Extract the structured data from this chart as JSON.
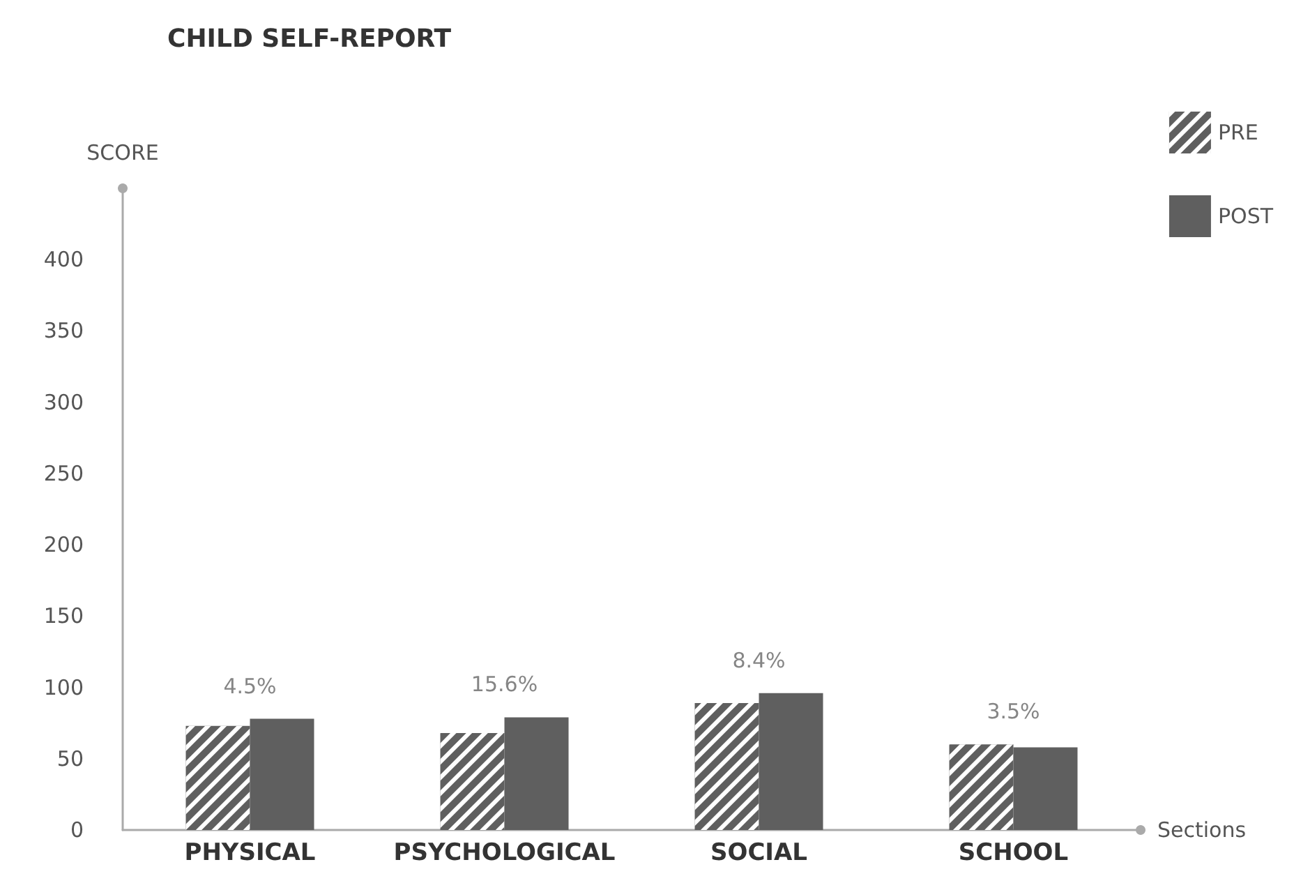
{
  "chart_data": {
    "type": "bar",
    "title": "CHILD SELF-REPORT",
    "xlabel": "Sections",
    "ylabel": "SCORE",
    "categories": [
      "PHYSICAL",
      "PSYCHOLOGICAL",
      "SOCIAL",
      "SCHOOL"
    ],
    "series": [
      {
        "name": "PRE",
        "color": "#5f5f5f",
        "values": [
          73,
          68,
          89,
          60
        ]
      },
      {
        "name": "POST",
        "color": "#5f5f5f",
        "values": [
          78,
          79,
          96,
          58
        ]
      }
    ],
    "annotations": [
      "4.5%",
      "15.6%",
      "8.4%",
      "3.5%"
    ],
    "ylim": [
      0,
      450
    ],
    "yticks": [
      0,
      50,
      100,
      150,
      200,
      250,
      300,
      350,
      400
    ],
    "grid": false,
    "legend": "top right"
  }
}
